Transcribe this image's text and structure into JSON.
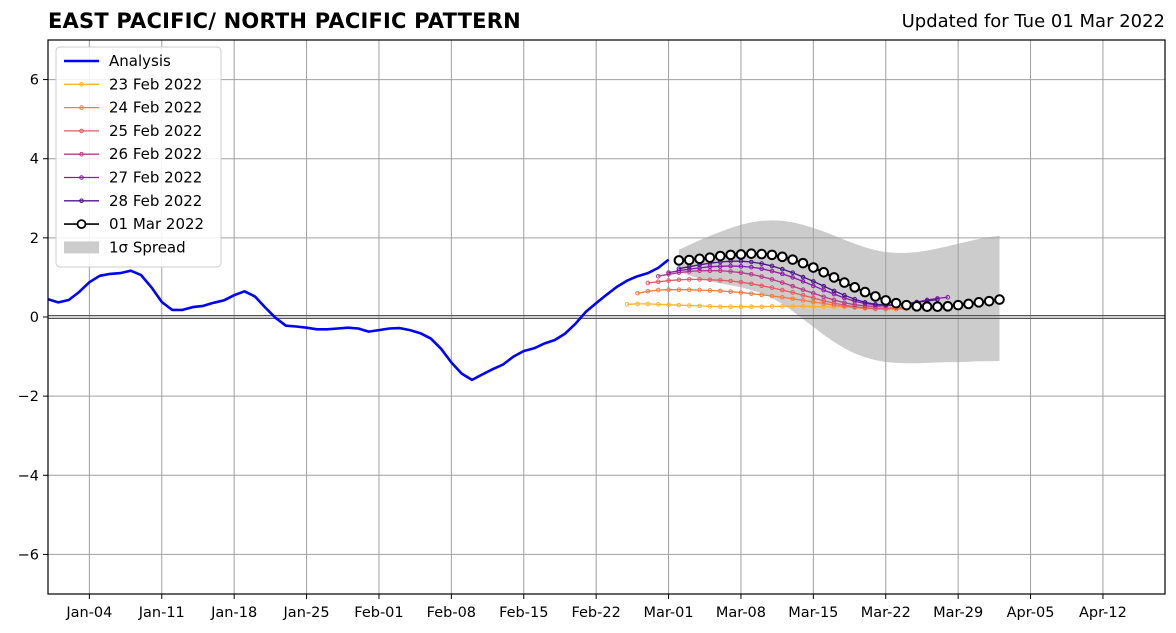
{
  "chart_data": {
    "type": "line",
    "title": "EAST PACIFIC/ NORTH PACIFIC PATTERN",
    "subtitle": "Updated for Tue 01 Mar 2022",
    "xlabel": "",
    "ylabel": "",
    "xlim": [
      "2021-12-31",
      "2022-04-18"
    ],
    "ylim": [
      -7,
      7
    ],
    "grid": true,
    "legend_position": "upper-left",
    "x_ticks": [
      "2022-01-04",
      "2022-01-11",
      "2022-01-18",
      "2022-01-25",
      "2022-02-01",
      "2022-02-08",
      "2022-02-15",
      "2022-02-22",
      "2022-03-01",
      "2022-03-08",
      "2022-03-15",
      "2022-03-22",
      "2022-03-29",
      "2022-04-05",
      "2022-04-12"
    ],
    "x_tick_labels": [
      "Jan-04",
      "Jan-11",
      "Jan-18",
      "Jan-25",
      "Feb-01",
      "Feb-08",
      "Feb-15",
      "Feb-22",
      "Mar-01",
      "Mar-08",
      "Mar-15",
      "Mar-22",
      "Mar-29",
      "Apr-05",
      "Apr-12"
    ],
    "y_ticks": [
      -6,
      -4,
      -2,
      0,
      2,
      4,
      6
    ],
    "y_tick_labels": [
      "−6",
      "−4",
      "−2",
      "0",
      "2",
      "4",
      "6"
    ],
    "analysis": {
      "name": "Analysis",
      "color": "#0000ff",
      "start_date": "2021-12-31",
      "values": [
        0.45,
        0.37,
        0.43,
        0.63,
        0.88,
        1.04,
        1.09,
        1.11,
        1.17,
        1.06,
        0.75,
        0.38,
        0.18,
        0.18,
        0.25,
        0.28,
        0.36,
        0.42,
        0.55,
        0.65,
        0.52,
        0.24,
        -0.02,
        -0.22,
        -0.24,
        -0.27,
        -0.31,
        -0.31,
        -0.29,
        -0.27,
        -0.29,
        -0.37,
        -0.33,
        -0.29,
        -0.28,
        -0.33,
        -0.41,
        -0.54,
        -0.8,
        -1.15,
        -1.43,
        -1.59,
        -1.45,
        -1.32,
        -1.2,
        -1.0,
        -0.86,
        -0.79,
        -0.67,
        -0.58,
        -0.42,
        -0.17,
        0.13,
        0.35,
        0.56,
        0.76,
        0.92,
        1.03,
        1.11,
        1.24,
        1.45
      ]
    },
    "forecasts": [
      {
        "name": "23 Feb 2022",
        "color": "#fbb42e",
        "start_date": "2022-02-25",
        "values": [
          0.32,
          0.33,
          0.33,
          0.32,
          0.31,
          0.3,
          0.29,
          0.28,
          0.27,
          0.26,
          0.26,
          0.26,
          0.26,
          0.26,
          0.27,
          0.27,
          0.27,
          0.27,
          0.26,
          0.26,
          0.25,
          0.25,
          0.24,
          0.24,
          0.24,
          0.23,
          0.23,
          0.22
        ]
      },
      {
        "name": "24 Feb 2022",
        "color": "#f57d3a",
        "start_date": "2022-02-26",
        "values": [
          0.6,
          0.65,
          0.68,
          0.69,
          0.69,
          0.69,
          0.68,
          0.67,
          0.66,
          0.64,
          0.62,
          0.59,
          0.56,
          0.53,
          0.5,
          0.46,
          0.42,
          0.38,
          0.34,
          0.3,
          0.27,
          0.24,
          0.22,
          0.2,
          0.2,
          0.2,
          0.21
        ]
      },
      {
        "name": "25 Feb 2022",
        "color": "#e35a64",
        "start_date": "2022-02-27",
        "values": [
          0.86,
          0.89,
          0.92,
          0.94,
          0.95,
          0.95,
          0.94,
          0.93,
          0.91,
          0.88,
          0.84,
          0.79,
          0.74,
          0.68,
          0.62,
          0.55,
          0.48,
          0.41,
          0.35,
          0.3,
          0.26,
          0.23,
          0.22,
          0.22,
          0.23,
          0.25
        ]
      },
      {
        "name": "26 Feb 2022",
        "color": "#b43b8c",
        "start_date": "2022-02-28",
        "values": [
          1.03,
          1.08,
          1.12,
          1.15,
          1.17,
          1.17,
          1.17,
          1.15,
          1.12,
          1.08,
          1.02,
          0.95,
          0.87,
          0.78,
          0.69,
          0.6,
          0.51,
          0.43,
          0.36,
          0.31,
          0.28,
          0.27,
          0.28,
          0.3,
          0.33,
          0.36
        ]
      },
      {
        "name": "27 Feb 2022",
        "color": "#8c1aaa",
        "start_date": "2022-03-01",
        "values": [
          1.12,
          1.17,
          1.21,
          1.24,
          1.27,
          1.28,
          1.29,
          1.28,
          1.26,
          1.22,
          1.16,
          1.09,
          1.0,
          0.9,
          0.79,
          0.68,
          0.58,
          0.48,
          0.4,
          0.34,
          0.31,
          0.3,
          0.31,
          0.34,
          0.38,
          0.43,
          0.47,
          0.5
        ]
      },
      {
        "name": "28 Feb 2022",
        "color": "#4a148c",
        "start_date": "2022-03-02",
        "values": [
          1.22,
          1.27,
          1.32,
          1.36,
          1.39,
          1.41,
          1.41,
          1.39,
          1.35,
          1.29,
          1.21,
          1.12,
          1.01,
          0.9,
          0.78,
          0.66,
          0.55,
          0.45,
          0.37,
          0.32,
          0.3,
          0.31,
          0.33,
          0.37,
          0.41,
          0.44
        ]
      }
    ],
    "latest": {
      "name": "01 Mar 2022",
      "color": "#000000",
      "start_date": "2022-03-02",
      "values": [
        1.43,
        1.44,
        1.47,
        1.5,
        1.54,
        1.57,
        1.58,
        1.6,
        1.59,
        1.57,
        1.52,
        1.45,
        1.36,
        1.25,
        1.13,
        1.0,
        0.87,
        0.75,
        0.63,
        0.52,
        0.42,
        0.35,
        0.3,
        0.27,
        0.26,
        0.26,
        0.27,
        0.3,
        0.33,
        0.37,
        0.4,
        0.44
      ]
    },
    "spread": {
      "name": "1σ Spread",
      "color": "#cccccc",
      "start_date": "2022-03-02",
      "upper": [
        1.7,
        1.82,
        1.94,
        2.05,
        2.15,
        2.25,
        2.33,
        2.39,
        2.43,
        2.44,
        2.43,
        2.39,
        2.33,
        2.25,
        2.16,
        2.06,
        1.95,
        1.85,
        1.76,
        1.69,
        1.64,
        1.62,
        1.62,
        1.64,
        1.68,
        1.73,
        1.79,
        1.85,
        1.91,
        1.97,
        2.02,
        2.05
      ],
      "lower": [
        1.15,
        1.05,
        0.97,
        0.9,
        0.85,
        0.8,
        0.75,
        0.68,
        0.6,
        0.48,
        0.33,
        0.15,
        -0.05,
        -0.25,
        -0.45,
        -0.63,
        -0.79,
        -0.92,
        -1.02,
        -1.09,
        -1.14,
        -1.16,
        -1.17,
        -1.17,
        -1.16,
        -1.15,
        -1.14,
        -1.14,
        -1.13,
        -1.12,
        -1.12,
        -1.11
      ]
    }
  }
}
